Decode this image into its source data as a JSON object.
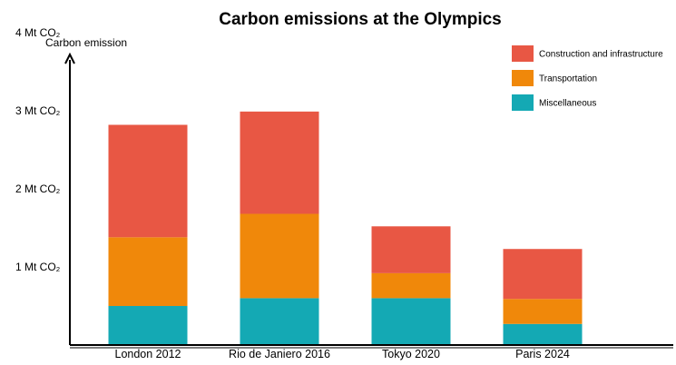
{
  "chart_data": {
    "type": "bar",
    "stacked": true,
    "title": "Carbon emissions at the Olympics",
    "ylabel": "Carbon emission",
    "xlabel": "",
    "categories": [
      "London 2012",
      "Rio de Janiero 2016",
      "Tokyo 2020",
      "Paris 2024"
    ],
    "series": [
      {
        "name": "Miscellaneous",
        "color": "#14A9B4",
        "values": [
          0.5,
          0.6,
          0.6,
          0.27
        ]
      },
      {
        "name": "Transportation",
        "color": "#F0880A",
        "values": [
          0.88,
          1.08,
          0.32,
          0.32
        ]
      },
      {
        "name": "Construction and infrastructure",
        "color": "#E85744",
        "values": [
          1.44,
          1.31,
          0.6,
          0.64
        ]
      }
    ],
    "yticks": [
      {
        "value": 1,
        "label": "1 Mt CO₂"
      },
      {
        "value": 2,
        "label": "2 Mt CO₂"
      },
      {
        "value": 3,
        "label": "3 Mt CO₂"
      },
      {
        "value": 4,
        "label": "4 Mt CO₂"
      }
    ],
    "ylim": [
      0,
      4.6
    ],
    "grid": false,
    "legend_position": "top-right"
  }
}
